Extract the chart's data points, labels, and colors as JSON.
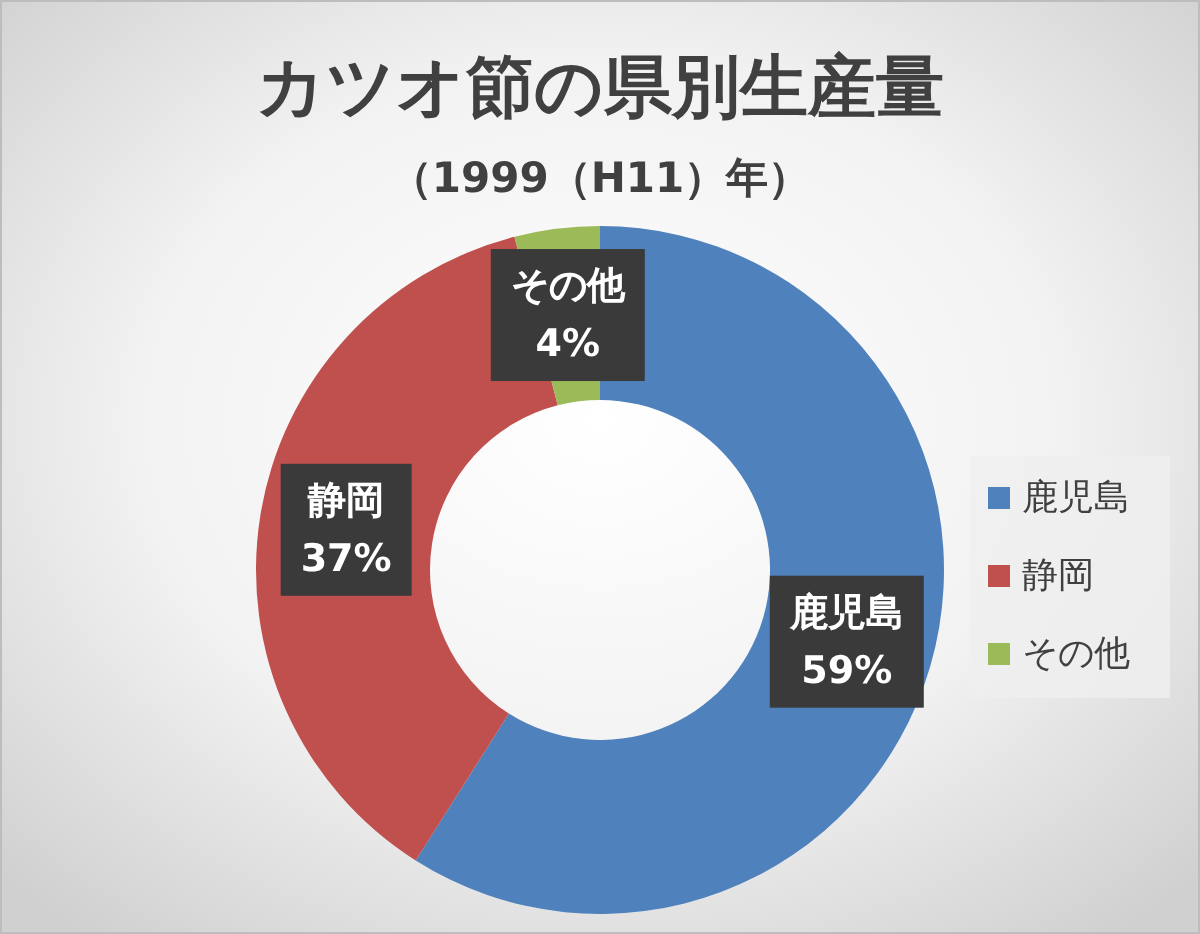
{
  "chart_data": {
    "type": "donut",
    "title": "カツオ節の県別生産量",
    "subtitle": "（1999（H11）年）",
    "categories": [
      "鹿児島",
      "静岡",
      "その他"
    ],
    "values": [
      59,
      37,
      4
    ],
    "value_labels": [
      "59%",
      "37%",
      "4%"
    ],
    "colors": [
      "#4f81bd",
      "#c0504d",
      "#9bbb59"
    ],
    "legend": "right"
  }
}
